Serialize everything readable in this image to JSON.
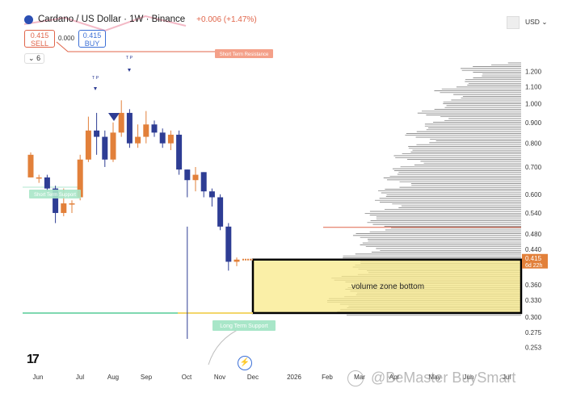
{
  "header": {
    "title": "Cardano / US Dollar · 1W · Binance",
    "change": "+0.006 (+1.47%)"
  },
  "trade": {
    "sell_price": "0.415",
    "sell_label": "SELL",
    "spread": "0.000",
    "buy_price": "0.415",
    "buy_label": "BUY"
  },
  "indicator_count": "6",
  "currency": "USD",
  "watermark": "@BeMaster BuySmart",
  "chart_data": {
    "type": "candlestick",
    "title": "Cardano / US Dollar · 1W · Binance",
    "price_axis": {
      "scale": "log",
      "range": [
        0.24,
        1.32
      ],
      "ticks": [
        "1.200",
        "1.100",
        "1.000",
        "0.900",
        "0.800",
        "0.700",
        "0.600",
        "0.540",
        "0.480",
        "0.440",
        "0.360",
        "0.330",
        "0.300",
        "0.275",
        "0.253"
      ]
    },
    "time_axis": [
      "Jun",
      "Jul",
      "Aug",
      "Sep",
      "Oct",
      "Nov",
      "Dec",
      "2026",
      "Feb",
      "Mar",
      "Apr",
      "May",
      "Jun",
      "Jul"
    ],
    "last_price": {
      "value": "0.415",
      "countdown": "6d 22h"
    },
    "candles": [
      {
        "o": 0.66,
        "h": 0.76,
        "l": 0.66,
        "c": 0.75
      },
      {
        "o": 0.66,
        "h": 0.67,
        "l": 0.64,
        "c": 0.66
      },
      {
        "o": 0.66,
        "h": 0.67,
        "l": 0.61,
        "c": 0.62
      },
      {
        "o": 0.62,
        "h": 0.63,
        "l": 0.51,
        "c": 0.54
      },
      {
        "o": 0.54,
        "h": 0.62,
        "l": 0.53,
        "c": 0.57
      },
      {
        "o": 0.57,
        "h": 0.58,
        "l": 0.54,
        "c": 0.57
      },
      {
        "o": 0.59,
        "h": 0.75,
        "l": 0.58,
        "c": 0.73
      },
      {
        "o": 0.73,
        "h": 0.93,
        "l": 0.72,
        "c": 0.86
      },
      {
        "o": 0.86,
        "h": 0.95,
        "l": 0.75,
        "c": 0.83
      },
      {
        "o": 0.83,
        "h": 0.86,
        "l": 0.7,
        "c": 0.73
      },
      {
        "o": 0.73,
        "h": 0.9,
        "l": 0.72,
        "c": 0.85
      },
      {
        "o": 0.85,
        "h": 1.02,
        "l": 0.83,
        "c": 0.95
      },
      {
        "o": 0.95,
        "h": 0.97,
        "l": 0.78,
        "c": 0.8
      },
      {
        "o": 0.8,
        "h": 0.89,
        "l": 0.78,
        "c": 0.83
      },
      {
        "o": 0.83,
        "h": 0.96,
        "l": 0.8,
        "c": 0.89
      },
      {
        "o": 0.89,
        "h": 0.91,
        "l": 0.83,
        "c": 0.85
      },
      {
        "o": 0.85,
        "h": 0.87,
        "l": 0.78,
        "c": 0.8
      },
      {
        "o": 0.8,
        "h": 0.86,
        "l": 0.77,
        "c": 0.84
      },
      {
        "o": 0.84,
        "h": 0.86,
        "l": 0.67,
        "c": 0.69
      },
      {
        "o": 0.69,
        "h": 0.69,
        "l": 0.59,
        "c": 0.65
      },
      {
        "o": 0.65,
        "h": 0.7,
        "l": 0.61,
        "c": 0.67
      },
      {
        "o": 0.68,
        "h": 0.68,
        "l": 0.59,
        "c": 0.61
      },
      {
        "o": 0.61,
        "h": 0.62,
        "l": 0.56,
        "c": 0.59
      },
      {
        "o": 0.59,
        "h": 0.6,
        "l": 0.49,
        "c": 0.5
      },
      {
        "o": 0.5,
        "h": 0.51,
        "l": 0.39,
        "c": 0.41
      },
      {
        "o": 0.41,
        "h": 0.42,
        "l": 0.4,
        "c": 0.415
      }
    ],
    "annotations": [
      {
        "label": "Short Term Resistance"
      },
      {
        "label": "Short Term Support"
      },
      {
        "label": "Long Term Support"
      },
      {
        "label": "volume zone bottom"
      }
    ],
    "markers": [
      {
        "label": "T P"
      },
      {
        "label": "T P"
      }
    ],
    "zone": {
      "top": 0.415,
      "bottom": 0.307
    },
    "long_term_support": 0.307,
    "colors": {
      "up": "#e2803a",
      "down": "#2e3d94",
      "zone": "#f8e98a",
      "support_line": "#7fd8b0",
      "resistance_line": "#e0654a",
      "profile": "#555555"
    }
  }
}
